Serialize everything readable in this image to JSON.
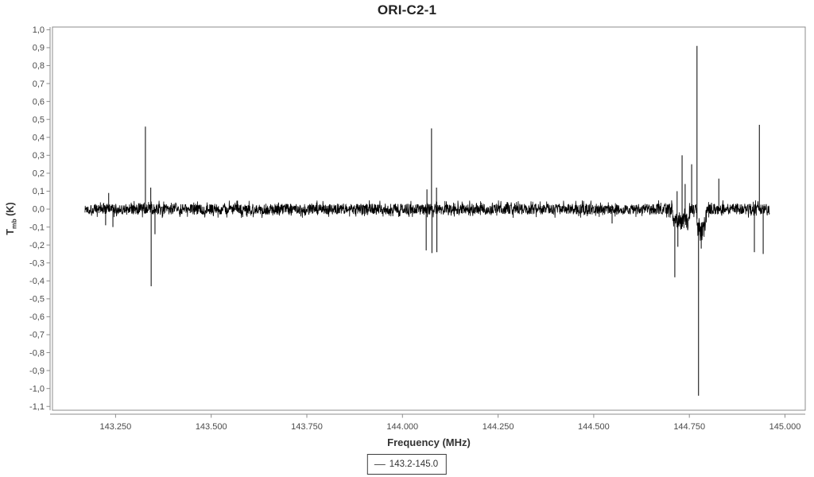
{
  "page": {
    "background": "#ffffff"
  },
  "chart_data": {
    "type": "line",
    "title": "ORI-C2-1",
    "xlabel": "Frequency (MHz)",
    "ylabel": "T_mb (K)",
    "ylabel_parts": {
      "symbol": "T",
      "sub": "mb",
      "unit": " (K)"
    },
    "grid": false,
    "xlim": [
      143.085,
      145.053
    ],
    "ylim": [
      -1.121,
      1.015
    ],
    "x_ticks": [
      {
        "v": 143.25,
        "label": "143.250"
      },
      {
        "v": 143.5,
        "label": "143.500"
      },
      {
        "v": 143.75,
        "label": "143.750"
      },
      {
        "v": 144.0,
        "label": "144.000"
      },
      {
        "v": 144.25,
        "label": "144.250"
      },
      {
        "v": 144.5,
        "label": "144.500"
      },
      {
        "v": 144.75,
        "label": "144.750"
      },
      {
        "v": 145.0,
        "label": "145.000"
      }
    ],
    "y_ticks": [
      {
        "v": 1.0,
        "label": "1,0"
      },
      {
        "v": 0.9,
        "label": "0,9"
      },
      {
        "v": 0.8,
        "label": "0,8"
      },
      {
        "v": 0.7,
        "label": "0,7"
      },
      {
        "v": 0.6,
        "label": "0,6"
      },
      {
        "v": 0.5,
        "label": "0,5"
      },
      {
        "v": 0.4,
        "label": "0,4"
      },
      {
        "v": 0.3,
        "label": "0,3"
      },
      {
        "v": 0.2,
        "label": "0,2"
      },
      {
        "v": 0.1,
        "label": "0,1"
      },
      {
        "v": 0.0,
        "label": "0,0"
      },
      {
        "v": -0.1,
        "label": "-0,1"
      },
      {
        "v": -0.2,
        "label": "-0,2"
      },
      {
        "v": -0.3,
        "label": "-0,3"
      },
      {
        "v": -0.4,
        "label": "-0,4"
      },
      {
        "v": -0.5,
        "label": "-0,5"
      },
      {
        "v": -0.6,
        "label": "-0,6"
      },
      {
        "v": -0.7,
        "label": "-0,7"
      },
      {
        "v": -0.8,
        "label": "-0,8"
      },
      {
        "v": -0.9,
        "label": "-0,9"
      },
      {
        "v": -1.0,
        "label": "-1,0"
      },
      {
        "v": -1.1,
        "label": "-1,1"
      }
    ],
    "legend": {
      "position": "bottom-center",
      "entries": [
        {
          "label": "143.2-145.0",
          "color": "#000000"
        }
      ]
    },
    "series": [
      {
        "name": "143.2-145.0",
        "color": "#000000",
        "x_start": 143.17,
        "x_end": 144.96,
        "baseline": 0.0,
        "noise_half_amplitude": 0.03,
        "dips": [
          {
            "x0": 144.704,
            "x1": 144.752,
            "depth": -0.07
          },
          {
            "x0": 144.768,
            "x1": 144.795,
            "depth": -0.11
          }
        ],
        "peaks": [
          {
            "x": 143.224,
            "y": -0.09
          },
          {
            "x": 143.232,
            "y": 0.09
          },
          {
            "x": 143.243,
            "y": -0.1
          },
          {
            "x": 143.328,
            "y": 0.46
          },
          {
            "x": 143.342,
            "y": 0.12
          },
          {
            "x": 143.343,
            "y": -0.43
          },
          {
            "x": 143.353,
            "y": -0.14
          },
          {
            "x": 144.062,
            "y": -0.23
          },
          {
            "x": 144.064,
            "y": 0.11
          },
          {
            "x": 144.076,
            "y": 0.45
          },
          {
            "x": 144.077,
            "y": -0.245
          },
          {
            "x": 144.089,
            "y": 0.12
          },
          {
            "x": 144.09,
            "y": -0.24
          },
          {
            "x": 144.548,
            "y": -0.08
          },
          {
            "x": 144.712,
            "y": -0.38
          },
          {
            "x": 144.718,
            "y": 0.1
          },
          {
            "x": 144.72,
            "y": -0.21
          },
          {
            "x": 144.731,
            "y": 0.3
          },
          {
            "x": 144.739,
            "y": 0.14
          },
          {
            "x": 144.756,
            "y": 0.25
          },
          {
            "x": 144.77,
            "y": 0.91
          },
          {
            "x": 144.774,
            "y": -1.04
          },
          {
            "x": 144.781,
            "y": -0.22
          },
          {
            "x": 144.827,
            "y": 0.17
          },
          {
            "x": 144.92,
            "y": -0.24
          },
          {
            "x": 144.933,
            "y": 0.47
          },
          {
            "x": 144.943,
            "y": -0.25
          }
        ]
      }
    ],
    "style": {
      "frame_color": "#8c8c8c",
      "axis_line_color": "#8c8c8c",
      "tick_label_color": "#4a4a4a",
      "title_color": "#232323",
      "series_color": "#000000",
      "legend_border_color": "#3c3c3c"
    }
  }
}
